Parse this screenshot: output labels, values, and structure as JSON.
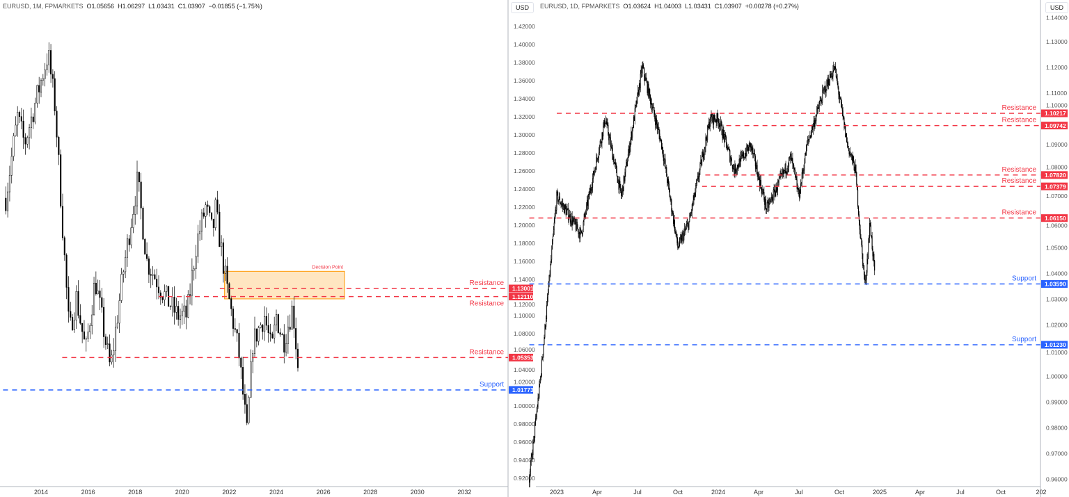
{
  "left": {
    "header": {
      "symbol": "EURUSD, 1M, FPMARKETS",
      "open": "O1.05656",
      "high": "H1.06297",
      "low": "L1.03431",
      "close": "C1.03907",
      "change": "−0.01855 (−1.75%)"
    },
    "currency": "USD"
  },
  "right": {
    "header": {
      "symbol": "EURUSD, 1D, FPMARKETS",
      "open": "O1.03624",
      "high": "H1.04003",
      "low": "L1.03431",
      "close": "C1.03907",
      "change": "+0.00278 (+0.27%)"
    },
    "currency": "USD"
  },
  "colors": {
    "resistance": "#f23645",
    "support": "#2962ff",
    "box_fill": "#ffe0b2",
    "box_border": "#ff9800",
    "candle": "#000000"
  },
  "chart_data": [
    {
      "type": "candlestick",
      "title": "EURUSD, 1M",
      "ylim": [
        0.91,
        1.44
      ],
      "y_ticks": [
        "1.42000",
        "1.40000",
        "1.38000",
        "1.36000",
        "1.34000",
        "1.32000",
        "1.30000",
        "1.28000",
        "1.26000",
        "1.24000",
        "1.22000",
        "1.20000",
        "1.18000",
        "1.16000",
        "1.14000",
        "1.12000",
        "1.10000",
        "1.08000",
        "1.06000",
        "1.04000",
        "1.02000",
        "1.00000",
        "0.98000",
        "0.96000",
        "0.94000",
        "0.92000"
      ],
      "x_ticks": [
        "2014",
        "2016",
        "2018",
        "2020",
        "2022",
        "2024",
        "2026",
        "2028",
        "2030",
        "2032"
      ],
      "x_tick_years": [
        2014,
        2016,
        2018,
        2020,
        2022,
        2024,
        2026,
        2028,
        2030,
        2032
      ],
      "path": [
        [
          2012.5,
          1.23
        ],
        [
          2013.0,
          1.32
        ],
        [
          2013.3,
          1.29
        ],
        [
          2014.3,
          1.39
        ],
        [
          2014.6,
          1.33
        ],
        [
          2015.2,
          1.08
        ],
        [
          2015.5,
          1.12
        ],
        [
          2015.9,
          1.06
        ],
        [
          2016.3,
          1.14
        ],
        [
          2016.95,
          1.04
        ],
        [
          2017.5,
          1.15
        ],
        [
          2018.1,
          1.25
        ],
        [
          2018.5,
          1.16
        ],
        [
          2019.3,
          1.12
        ],
        [
          2019.8,
          1.1
        ],
        [
          2020.2,
          1.1
        ],
        [
          2020.6,
          1.18
        ],
        [
          2021.0,
          1.22
        ],
        [
          2021.3,
          1.19
        ],
        [
          2021.4,
          1.22
        ],
        [
          2021.9,
          1.13
        ],
        [
          2022.4,
          1.06
        ],
        [
          2022.75,
          0.97
        ],
        [
          2023.0,
          1.07
        ],
        [
          2023.5,
          1.1
        ],
        [
          2023.8,
          1.06
        ],
        [
          2024.0,
          1.1
        ],
        [
          2024.3,
          1.07
        ],
        [
          2024.7,
          1.11
        ],
        [
          2024.9,
          1.05
        ],
        [
          2024.97,
          1.039
        ]
      ],
      "levels": [
        {
          "kind": "resistance",
          "price": 1.13001,
          "label": "Resistance",
          "value": "1.13001",
          "from": 2021.6,
          "label_pos": "above"
        },
        {
          "kind": "resistance",
          "price": 1.1211,
          "label": "Resistance",
          "value": "1.12110",
          "from": 2019.0,
          "label_pos": "below"
        },
        {
          "kind": "resistance",
          "price": 1.05353,
          "label": "Resistance",
          "value": "1.05353",
          "from": 2014.9,
          "label_pos": "above"
        },
        {
          "kind": "support",
          "price": 1.01773,
          "label": "Support",
          "value": "1.01773",
          "from": 2012.0,
          "label_pos": "above"
        }
      ],
      "zone": {
        "label": "Decision Point",
        "price_top": 1.149,
        "price_bottom": 1.1185,
        "from": 2021.8,
        "to": 2026.9
      }
    },
    {
      "type": "candlestick",
      "title": "EURUSD, 1D",
      "ylim": [
        0.955,
        1.145
      ],
      "y_ticks": [
        "1.14000",
        "1.13000",
        "1.12000",
        "1.11000",
        "1.10000",
        "1.09000",
        "1.08000",
        "1.07000",
        "1.06000",
        "1.05000",
        "1.04000",
        "1.03000",
        "1.02000",
        "1.01000",
        "1.00000",
        "0.99000",
        "0.98000",
        "0.97000",
        "0.96000"
      ],
      "x_ticks": [
        "2023",
        "Apr",
        "Jul",
        "Oct",
        "2024",
        "Apr",
        "Jul",
        "Oct",
        "2025",
        "Apr",
        "Jul",
        "Oct",
        "202"
      ],
      "x_tick_years": [
        2023,
        2023.25,
        2023.5,
        2023.75,
        2024,
        2024.25,
        2024.5,
        2024.75,
        2025,
        2025.25,
        2025.5,
        2025.75,
        2026
      ],
      "path": [
        [
          2022.83,
          0.96
        ],
        [
          2022.9,
          1.0
        ],
        [
          2023.0,
          1.07
        ],
        [
          2023.1,
          1.06
        ],
        [
          2023.15,
          1.055
        ],
        [
          2023.3,
          1.1
        ],
        [
          2023.4,
          1.07
        ],
        [
          2023.53,
          1.12
        ],
        [
          2023.65,
          1.09
        ],
        [
          2023.75,
          1.05
        ],
        [
          2023.82,
          1.06
        ],
        [
          2023.95,
          1.1
        ],
        [
          2024.0,
          1.1
        ],
        [
          2024.1,
          1.08
        ],
        [
          2024.2,
          1.09
        ],
        [
          2024.3,
          1.065
        ],
        [
          2024.45,
          1.085
        ],
        [
          2024.5,
          1.07
        ],
        [
          2024.55,
          1.09
        ],
        [
          2024.65,
          1.11
        ],
        [
          2024.72,
          1.12
        ],
        [
          2024.8,
          1.09
        ],
        [
          2024.85,
          1.08
        ],
        [
          2024.88,
          1.055
        ],
        [
          2024.91,
          1.035
        ],
        [
          2024.94,
          1.06
        ],
        [
          2024.97,
          1.039
        ]
      ],
      "levels": [
        {
          "kind": "resistance",
          "price": 1.10217,
          "label": "Resistance",
          "value": "1.10217",
          "from": 2023.0,
          "label_pos": "above"
        },
        {
          "kind": "resistance",
          "price": 1.09742,
          "label": "Resistance",
          "value": "1.09742",
          "from": 2024.05,
          "label_pos": "above"
        },
        {
          "kind": "resistance",
          "price": 1.0782,
          "label": "Resistance",
          "value": "1.07820",
          "from": 2023.92,
          "label_pos": "above"
        },
        {
          "kind": "resistance",
          "price": 1.07379,
          "label": "Resistance",
          "value": "1.07379",
          "from": 2023.9,
          "label_pos": "above"
        },
        {
          "kind": "resistance",
          "price": 1.0615,
          "label": "Resistance",
          "value": "1.06150",
          "from": 2022.83,
          "label_pos": "above"
        },
        {
          "kind": "support",
          "price": 1.0359,
          "label": "Support",
          "value": "1.03590",
          "from": 2022.83,
          "label_pos": "above"
        },
        {
          "kind": "support",
          "price": 1.0123,
          "label": "Support",
          "value": "1.01230",
          "from": 2022.83,
          "label_pos": "above"
        }
      ]
    }
  ]
}
